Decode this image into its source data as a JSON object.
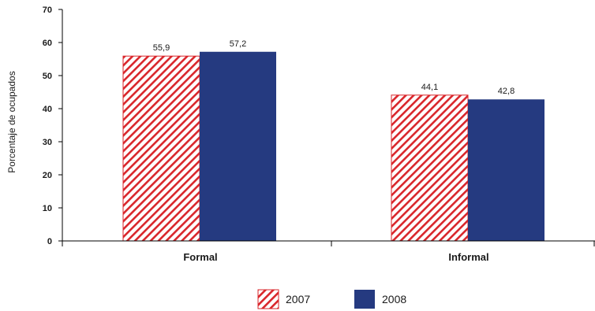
{
  "chart_data": {
    "type": "bar",
    "categories": [
      "Formal",
      "Informal"
    ],
    "series": [
      {
        "name": "2007",
        "values": [
          55.9,
          44.1
        ],
        "value_labels": [
          "55,9",
          "44,1"
        ],
        "pattern": "diagonal-hatch",
        "color": "#d9262b"
      },
      {
        "name": "2008",
        "values": [
          57.2,
          42.8
        ],
        "value_labels": [
          "57,2",
          "42,8"
        ],
        "pattern": "solid",
        "color": "#253a80"
      }
    ],
    "ylabel": "Porcentaje de ocupados",
    "xlabel": "",
    "ylim": [
      0,
      70
    ],
    "yticks": [
      0,
      10,
      20,
      30,
      40,
      50,
      60,
      70
    ],
    "grid": false,
    "legend_position": "bottom-center"
  }
}
